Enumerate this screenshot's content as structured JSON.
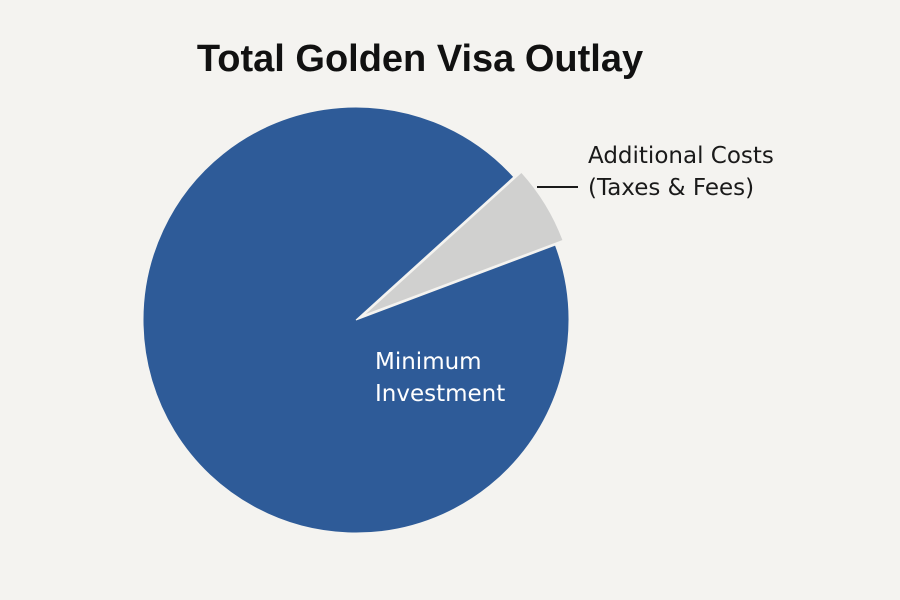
{
  "chart_data": {
    "type": "pie",
    "title": "Total Golden Visa Outlay",
    "categories": [
      "Minimum Investment",
      "Additional Costs (Taxes & Fees)"
    ],
    "values": [
      94,
      6
    ],
    "colors": [
      "#2e5b98",
      "#d0d0cf"
    ]
  }
}
